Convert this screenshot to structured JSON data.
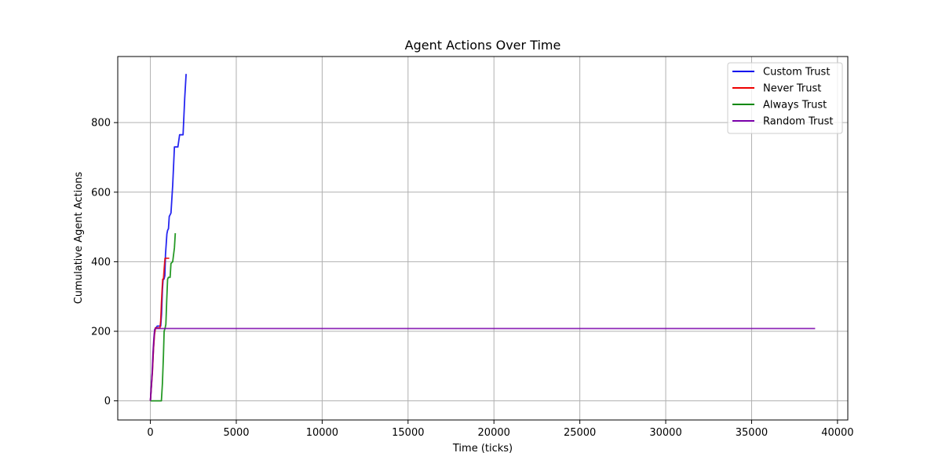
{
  "chart_data": {
    "type": "line",
    "title": "Agent Actions Over Time",
    "xlabel": "Time (ticks)",
    "ylabel": "Cumulative Agent Actions",
    "xlim": [
      -1900,
      40600
    ],
    "ylim": [
      -55,
      990
    ],
    "xticks": [
      0,
      5000,
      10000,
      15000,
      20000,
      25000,
      30000,
      35000,
      40000
    ],
    "yticks": [
      0,
      200,
      400,
      600,
      800
    ],
    "grid": true,
    "legend_position": "top-right",
    "series": [
      {
        "name": "Custom Trust",
        "color": "#0000ee",
        "x": [
          0,
          120,
          180,
          230,
          260,
          300,
          330,
          400,
          450,
          500,
          560,
          600,
          650,
          700,
          740,
          790,
          840,
          880,
          920,
          960,
          1000,
          1050,
          1100,
          1200,
          1300,
          1400,
          1500,
          1600,
          1700,
          1800,
          1900,
          2000,
          2080
        ],
        "y": [
          0,
          90,
          150,
          190,
          205,
          210,
          210,
          215,
          215,
          215,
          215,
          215,
          250,
          320,
          350,
          350,
          360,
          420,
          450,
          480,
          490,
          495,
          530,
          540,
          620,
          730,
          730,
          730,
          765,
          765,
          765,
          870,
          940
        ]
      },
      {
        "name": "Never Trust",
        "color": "#ee0000",
        "x": [
          0,
          120,
          180,
          240,
          300,
          400,
          500,
          560,
          600,
          640,
          680,
          720,
          760,
          800,
          850,
          900,
          1000,
          1100
        ],
        "y": [
          0,
          85,
          150,
          190,
          210,
          210,
          210,
          210,
          230,
          280,
          320,
          350,
          350,
          380,
          410,
          410,
          410,
          410
        ]
      },
      {
        "name": "Always Trust",
        "color": "#008800",
        "x": [
          0,
          100,
          200,
          300,
          400,
          500,
          600,
          640,
          700,
          760,
          800,
          860,
          900,
          950,
          1000,
          1050,
          1100,
          1150,
          1200,
          1300,
          1400,
          1450
        ],
        "y": [
          0,
          0,
          0,
          0,
          0,
          0,
          0,
          0,
          50,
          130,
          200,
          210,
          220,
          290,
          350,
          355,
          355,
          355,
          395,
          400,
          440,
          482
        ]
      },
      {
        "name": "Random Trust",
        "color": "#7a00aa",
        "x": [
          0,
          100,
          150,
          200,
          250,
          300,
          400,
          1000,
          5000,
          10000,
          20000,
          30000,
          38700
        ],
        "y": [
          0,
          80,
          140,
          180,
          205,
          208,
          208,
          208,
          208,
          208,
          208,
          208,
          208
        ]
      }
    ]
  }
}
